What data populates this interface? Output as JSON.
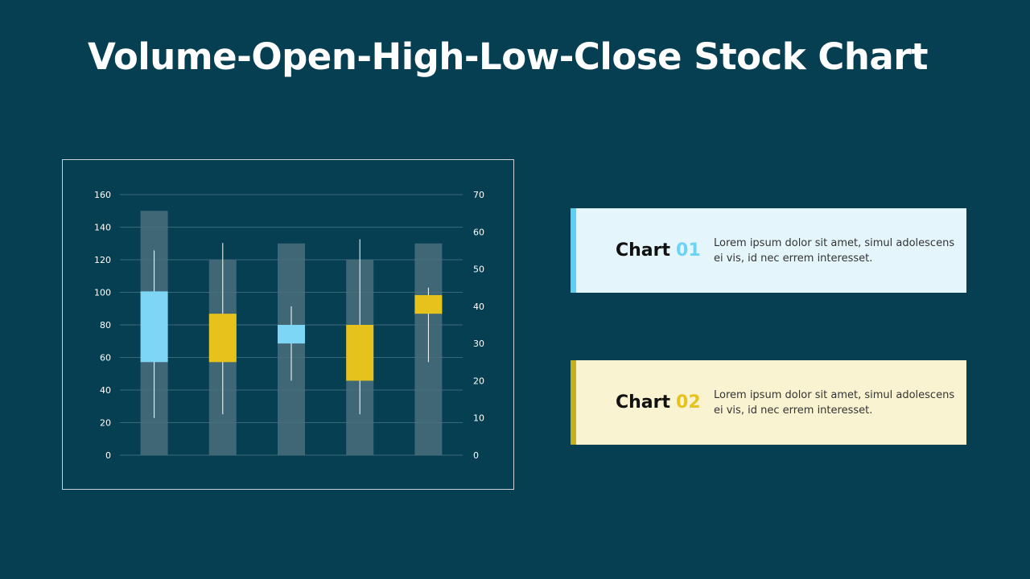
{
  "page": {
    "title": "Volume-Open-High-Low-Close Stock Chart",
    "background": "#073f52"
  },
  "chart_data": {
    "type": "volume-open-high-low-close",
    "title": "",
    "categories": [
      "",
      "",
      "",
      "",
      ""
    ],
    "y_left": {
      "min": 0,
      "max": 160,
      "step": 20,
      "ticks": [
        "0",
        "20",
        "40",
        "60",
        "80",
        "100",
        "120",
        "140",
        "160"
      ]
    },
    "y_right": {
      "min": 0,
      "max": 70,
      "step": 10,
      "ticks": [
        "0",
        "10",
        "20",
        "30",
        "40",
        "50",
        "60",
        "70"
      ]
    },
    "volume": [
      150,
      120,
      130,
      120,
      130
    ],
    "open": [
      25,
      25,
      30,
      20,
      38
    ],
    "high": [
      55,
      57,
      40,
      58,
      45
    ],
    "low": [
      10,
      11,
      20,
      11,
      25
    ],
    "close": [
      44,
      38,
      35,
      35,
      43
    ],
    "colors": {
      "up": "#7dd6f6",
      "down": "#e6c21c",
      "volume": "#4a6e7d",
      "grid": "#386a7a"
    },
    "grid": true,
    "legend": "none"
  },
  "cards": [
    {
      "label": "Chart",
      "number": "01",
      "text": "Lorem ipsum dolor sit amet, simul adolescens ei vis, id nec errem interesset.",
      "accent": "#5dcff3",
      "background": "#e5f5fc",
      "number_color": "#6dd3f5"
    },
    {
      "label": "Chart",
      "number": "02",
      "text": "Lorem ipsum dolor sit amet, simul adolescens ei vis, id nec errem interesset.",
      "accent": "#c6b01a",
      "background": "#faf3d2",
      "number_color": "#e6c21c"
    }
  ]
}
